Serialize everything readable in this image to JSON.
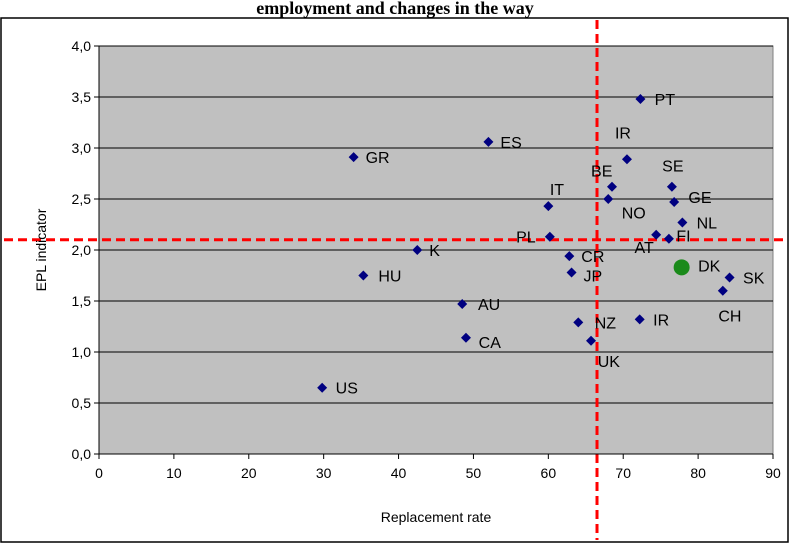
{
  "title": "employment and changes in the way",
  "chart_data": {
    "type": "scatter",
    "xlabel": "Replacement rate",
    "ylabel": "EPL indicator",
    "xlim": [
      0,
      90
    ],
    "ylim": [
      0,
      4
    ],
    "x_ticks": [
      "0",
      "10",
      "20",
      "30",
      "40",
      "50",
      "60",
      "70",
      "80",
      "90"
    ],
    "y_ticks": [
      "0,0",
      "0,5",
      "1,0",
      "1,5",
      "2,0",
      "2,5",
      "3,0",
      "3,5",
      "4,0"
    ],
    "grid": "horizontal",
    "background_color": "#c0c0c0",
    "marker_color": "#000080",
    "highlight_color": "#1a8a1a",
    "reference_line_color": "#ff0000",
    "reference_lines": {
      "x": 66.5,
      "y": 2.1
    },
    "points": [
      {
        "label": "PT",
        "x": 72.3,
        "y": 3.48,
        "lx": 74.2,
        "ly": 3.48
      },
      {
        "label": "ES",
        "x": 52.0,
        "y": 3.06,
        "lx": 53.6,
        "ly": 3.06
      },
      {
        "label": "GR",
        "x": 34.0,
        "y": 2.91,
        "lx": 35.6,
        "ly": 2.91
      },
      {
        "label": "IR",
        "x": 70.5,
        "y": 2.89,
        "lx": 68.9,
        "ly": 3.15
      },
      {
        "label": "BE",
        "x": 68.5,
        "y": 2.62,
        "lx": 65.7,
        "ly": 2.78
      },
      {
        "label": "SE",
        "x": 76.5,
        "y": 2.62,
        "lx": 75.2,
        "ly": 2.83
      },
      {
        "label": "GE",
        "x": 76.8,
        "y": 2.47,
        "lx": 78.7,
        "ly": 2.52
      },
      {
        "label": "IT",
        "x": 60.0,
        "y": 2.43,
        "lx": 60.2,
        "ly": 2.6
      },
      {
        "label": "NO",
        "x": 68.0,
        "y": 2.5,
        "lx": 69.8,
        "ly": 2.37
      },
      {
        "label": "NL",
        "x": 77.9,
        "y": 2.27,
        "lx": 79.8,
        "ly": 2.27
      },
      {
        "label": "FI",
        "x": 76.1,
        "y": 2.11,
        "lx": 77.1,
        "ly": 2.14
      },
      {
        "label": "AT",
        "x": 74.4,
        "y": 2.15,
        "lx": 71.5,
        "ly": 2.03
      },
      {
        "label": "PL",
        "x": 60.2,
        "y": 2.13,
        "lx": 55.7,
        "ly": 2.13
      },
      {
        "label": "K",
        "x": 42.5,
        "y": 2.0,
        "lx": 44.1,
        "ly": 2.0
      },
      {
        "label": "CR",
        "x": 62.8,
        "y": 1.94,
        "lx": 64.4,
        "ly": 1.94
      },
      {
        "label": "DK",
        "x": 77.8,
        "y": 1.83,
        "lx": 80.0,
        "ly": 1.85,
        "highlight": true
      },
      {
        "label": "SK",
        "x": 84.2,
        "y": 1.73,
        "lx": 86.0,
        "ly": 1.73
      },
      {
        "label": "JP",
        "x": 63.1,
        "y": 1.78,
        "lx": 64.7,
        "ly": 1.75
      },
      {
        "label": "HU",
        "x": 35.3,
        "y": 1.75,
        "lx": 37.3,
        "ly": 1.75
      },
      {
        "label": "CH",
        "x": 83.3,
        "y": 1.6,
        "lx": 82.7,
        "ly": 1.36
      },
      {
        "label": "AU",
        "x": 48.5,
        "y": 1.47,
        "lx": 50.6,
        "ly": 1.47
      },
      {
        "label": "IR",
        "x": 72.2,
        "y": 1.32,
        "lx": 74.0,
        "ly": 1.32
      },
      {
        "label": "NZ",
        "x": 64.0,
        "y": 1.29,
        "lx": 66.2,
        "ly": 1.29
      },
      {
        "label": "CA",
        "x": 49.0,
        "y": 1.14,
        "lx": 50.7,
        "ly": 1.1
      },
      {
        "label": "UK",
        "x": 65.7,
        "y": 1.11,
        "lx": 66.6,
        "ly": 0.91
      },
      {
        "label": "US",
        "x": 29.8,
        "y": 0.65,
        "lx": 31.6,
        "ly": 0.65
      }
    ]
  }
}
